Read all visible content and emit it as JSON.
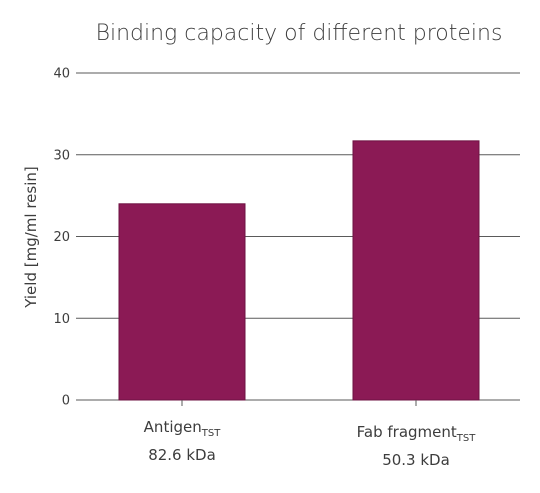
{
  "chart_data": {
    "type": "bar",
    "title": "Binding capacity of different proteins",
    "ylabel": "Yield [mg/ml resin]",
    "xlabel": "",
    "ylim": [
      0,
      40
    ],
    "yticks": [
      0,
      10,
      20,
      30,
      40
    ],
    "grid": true,
    "bar_color": "#8b1a55",
    "categories": [
      {
        "name": "Antigen",
        "subscript": "TST",
        "detail": "82.6 kDa"
      },
      {
        "name": "Fab fragment",
        "subscript": "TST",
        "detail": "50.3 kDa"
      }
    ],
    "values": [
      24.0,
      31.7
    ]
  }
}
